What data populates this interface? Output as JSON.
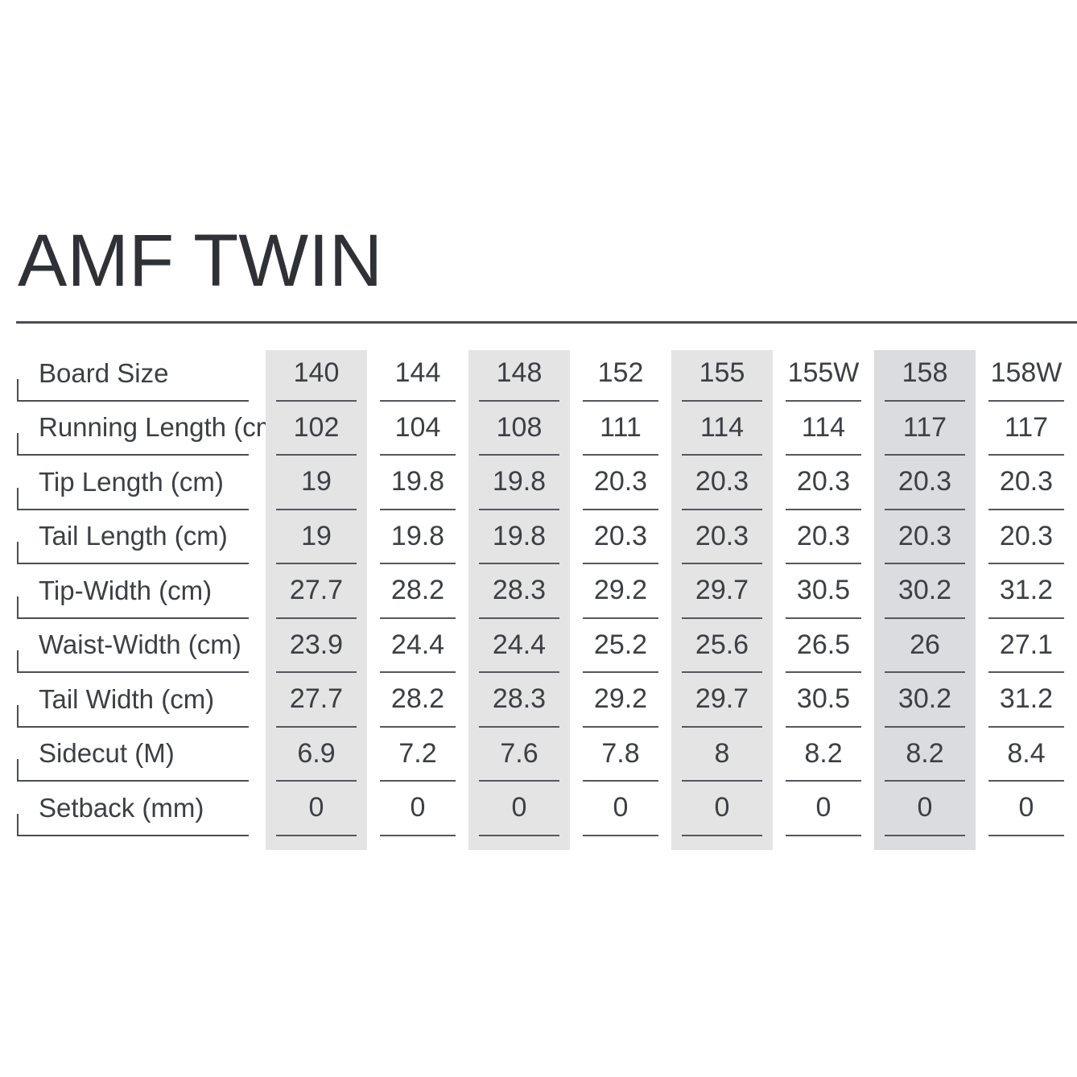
{
  "page": {
    "title": "AMF TWIN"
  },
  "colors": {
    "background": "#ffffff",
    "text": "#3c3f44",
    "title_text": "#2e3136",
    "column_shade": "#e4e4e5",
    "column_shade_darker": "#dbdcdf",
    "line": "#4a4d52"
  },
  "table": {
    "shaded_columns": [
      0,
      2,
      4,
      6
    ],
    "darker_shaded_column": 6,
    "sizes": [
      "140",
      "144",
      "148",
      "152",
      "155",
      "155W",
      "158",
      "158W"
    ],
    "rows": [
      {
        "label": "Board Size",
        "values": [
          "140",
          "144",
          "148",
          "152",
          "155",
          "155W",
          "158",
          "158W"
        ]
      },
      {
        "label": "Running Length (cm)",
        "values": [
          "102",
          "104",
          "108",
          "111",
          "114",
          "114",
          "117",
          "117"
        ]
      },
      {
        "label": "Tip Length (cm)",
        "values": [
          "19",
          "19.8",
          "19.8",
          "20.3",
          "20.3",
          "20.3",
          "20.3",
          "20.3"
        ]
      },
      {
        "label": "Tail Length (cm)",
        "values": [
          "19",
          "19.8",
          "19.8",
          "20.3",
          "20.3",
          "20.3",
          "20.3",
          "20.3"
        ]
      },
      {
        "label": "Tip-Width (cm)",
        "values": [
          "27.7",
          "28.2",
          "28.3",
          "29.2",
          "29.7",
          "30.5",
          "30.2",
          "31.2"
        ]
      },
      {
        "label": "Waist-Width (cm)",
        "values": [
          "23.9",
          "24.4",
          "24.4",
          "25.2",
          "25.6",
          "26.5",
          "26",
          "27.1"
        ]
      },
      {
        "label": "Tail Width (cm)",
        "values": [
          "27.7",
          "28.2",
          "28.3",
          "29.2",
          "29.7",
          "30.5",
          "30.2",
          "31.2"
        ]
      },
      {
        "label": "Sidecut (M)",
        "values": [
          "6.9",
          "7.2",
          "7.6",
          "7.8",
          "8",
          "8.2",
          "8.2",
          "8.4"
        ]
      },
      {
        "label": "Setback (mm)",
        "values": [
          "0",
          "0",
          "0",
          "0",
          "0",
          "0",
          "0",
          "0"
        ]
      }
    ]
  }
}
